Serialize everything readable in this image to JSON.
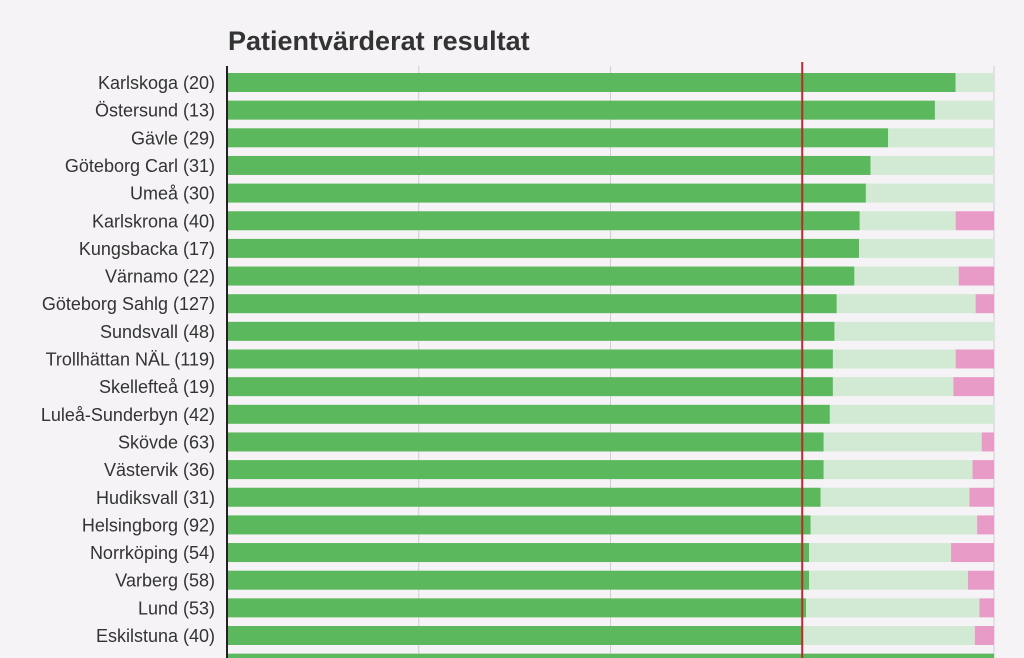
{
  "chart_data": {
    "type": "bar",
    "stacked": true,
    "orientation": "horizontal",
    "title": "Patientvärderat resultat",
    "categories": [
      "Karlskoga (20)",
      "Östersund (13)",
      "Gävle (29)",
      "Göteborg Carl (31)",
      "Umeå (30)",
      "Karlskrona (40)",
      "Kungsbacka (17)",
      "Värnamo (22)",
      "Göteborg Sahlg (127)",
      "Sundsvall (48)",
      "Trollhättan NÄL (119)",
      "Skellefteå (19)",
      "Luleå-Sunderbyn (42)",
      "Skövde (63)",
      "Västervik (36)",
      "Hudiksvall (31)",
      "Helsingborg (92)",
      "Norrköping (54)",
      "Varberg (58)",
      "Lund (53)",
      "Eskilstuna (40)"
    ],
    "series": [
      {
        "color": "#5cb85c",
        "values": [
          95,
          92.3,
          86.2,
          83.9,
          83.3,
          82.5,
          82.4,
          81.8,
          79.5,
          79.2,
          79,
          79,
          78.6,
          77.8,
          77.8,
          77.4,
          76.1,
          75.9,
          75.9,
          75.5,
          75
        ]
      },
      {
        "color": "#d2ead3",
        "values": [
          5,
          7.7,
          13.8,
          16.1,
          16.7,
          12.5,
          17.6,
          13.6,
          18.1,
          20.8,
          16,
          15.7,
          21.4,
          20.6,
          19.4,
          19.4,
          21.7,
          18.5,
          20.7,
          22.6,
          22.5
        ]
      },
      {
        "color": "#e99bc7",
        "values": [
          0,
          0,
          0,
          0,
          0,
          5,
          0,
          4.6,
          2.4,
          0,
          5,
          5.3,
          0,
          1.6,
          2.8,
          3.2,
          2.2,
          5.6,
          3.4,
          1.9,
          2.5
        ]
      }
    ],
    "reference_line": {
      "value": 75,
      "color": "#c0262d"
    },
    "xlim": [
      0,
      100
    ],
    "x_gridlines": [
      25,
      50,
      75,
      100
    ],
    "grid": true
  }
}
